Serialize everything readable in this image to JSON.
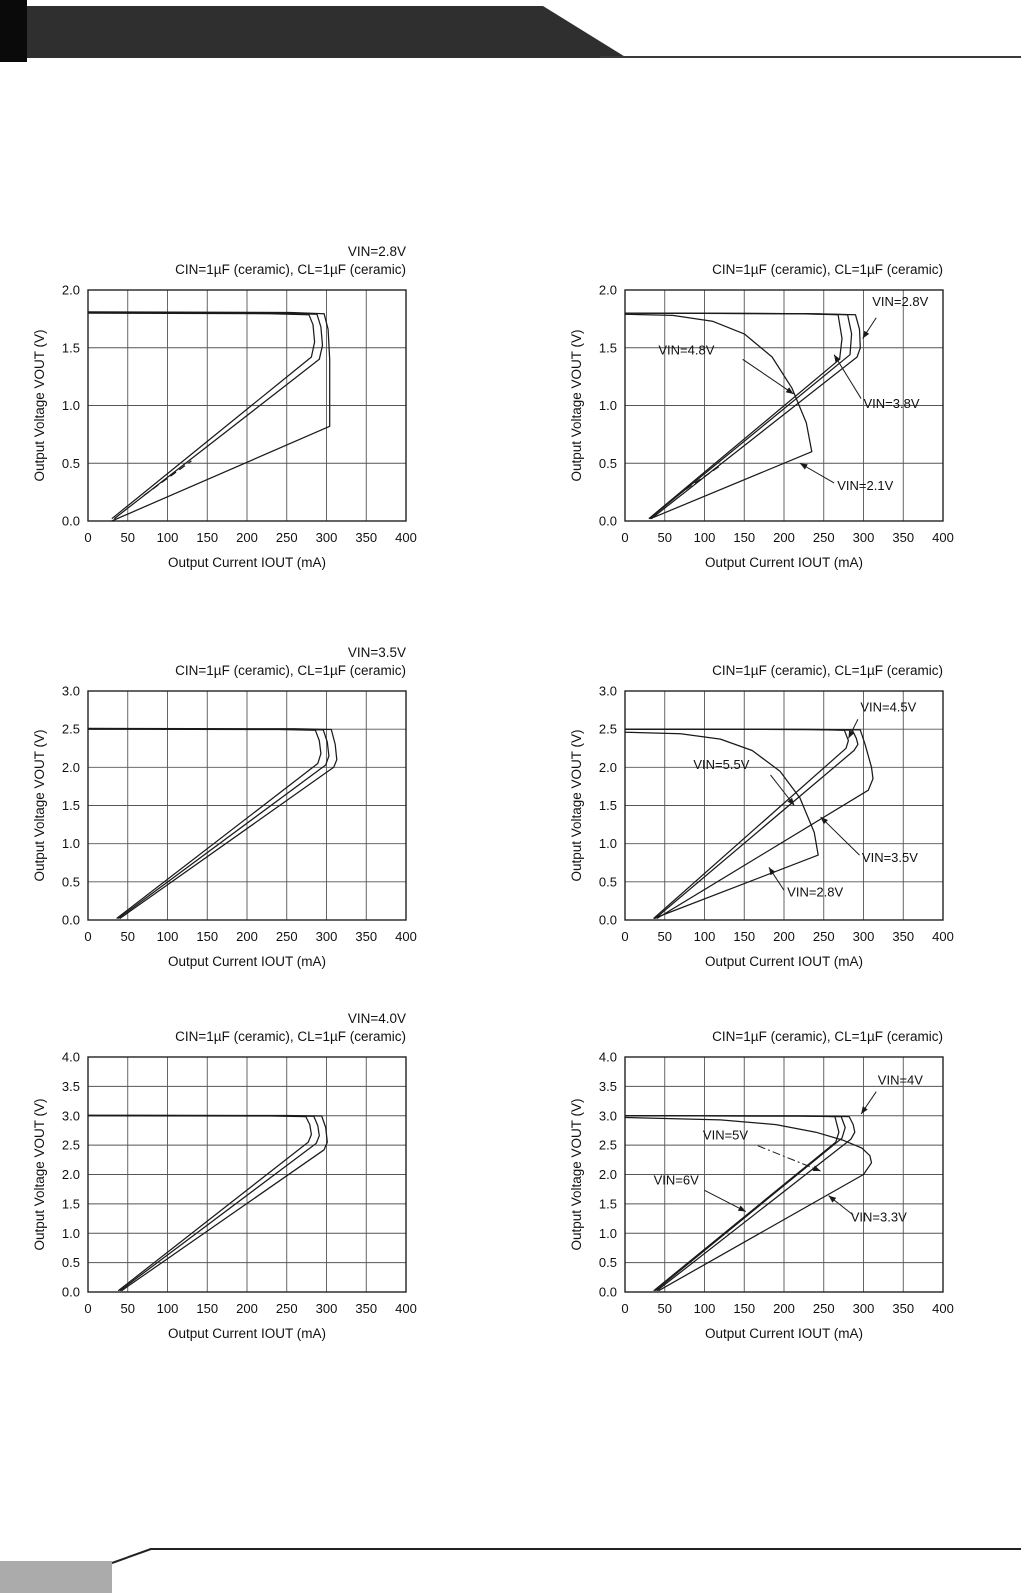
{
  "colors": {
    "curve": "#1a1a1a",
    "grid": "#555555",
    "border": "#222222",
    "band": "#2f2f2f",
    "corner": "#0a0a0a",
    "footer_block": "#ababab"
  },
  "chart_data": [
    {
      "type": "line",
      "vin_title": "VIN=2.8V",
      "title": "CIN=1µF (ceramic), CL=1µF (ceramic)",
      "xlabel": "Output Current IOUT (mA)",
      "ylabel": "Output Voltage VOUT (V)",
      "xlim": [
        0,
        400
      ],
      "ylim": [
        0,
        2.0
      ],
      "xtick_step": 50,
      "ytick_step": 0.5,
      "grid": true,
      "legend": "none",
      "series": [
        {
          "name": "curve-1",
          "points": [
            [
              0,
              1.8
            ],
            [
              230,
              1.795
            ],
            [
              278,
              1.785
            ],
            [
              283,
              1.7
            ],
            [
              285,
              1.55
            ],
            [
              281,
              1.42
            ],
            [
              30,
              0.02
            ]
          ]
        },
        {
          "name": "curve-2",
          "points": [
            [
              0,
              1.805
            ],
            [
              240,
              1.8
            ],
            [
              288,
              1.79
            ],
            [
              293,
              1.68
            ],
            [
              295,
              1.52
            ],
            [
              291,
              1.4
            ],
            [
              33,
              0.02
            ]
          ]
        },
        {
          "name": "curve-3",
          "points": [
            [
              0,
              1.81
            ],
            [
              255,
              1.805
            ],
            [
              297,
              1.795
            ],
            [
              302,
              1.66
            ],
            [
              304,
              1.4
            ],
            [
              304,
              0.82
            ],
            [
              30,
              0.0
            ]
          ]
        },
        {
          "name": "dashed-segment",
          "dashed": true,
          "points": [
            [
              70,
              0.22
            ],
            [
              130,
              0.52
            ]
          ]
        }
      ],
      "annotations": []
    },
    {
      "type": "line",
      "title": "CIN=1µF (ceramic), CL=1µF (ceramic)",
      "xlabel": "Output Current IOUT (mA)",
      "ylabel": "Output Voltage VOUT (V)",
      "xlim": [
        0,
        400
      ],
      "ylim": [
        0,
        2.0
      ],
      "xtick_step": 50,
      "ytick_step": 0.5,
      "grid": true,
      "legend": "inline-annotations",
      "series": [
        {
          "name": "VIN=2.8V",
          "points": [
            [
              0,
              1.8
            ],
            [
              240,
              1.795
            ],
            [
              290,
              1.785
            ],
            [
              295,
              1.66
            ],
            [
              296,
              1.5
            ],
            [
              292,
              1.42
            ],
            [
              33,
              0.02
            ]
          ]
        },
        {
          "name": "VIN=3.8V",
          "points": [
            [
              0,
              1.8
            ],
            [
              230,
              1.795
            ],
            [
              280,
              1.785
            ],
            [
              285,
              1.62
            ],
            [
              283,
              1.44
            ],
            [
              31,
              0.02
            ]
          ]
        },
        {
          "name": "VIN=4.8V",
          "points": [
            [
              0,
              1.8
            ],
            [
              220,
              1.795
            ],
            [
              268,
              1.785
            ],
            [
              273,
              1.58
            ],
            [
              270,
              1.4
            ],
            [
              30,
              0.02
            ]
          ]
        },
        {
          "name": "VIN=2.1V",
          "points": [
            [
              0,
              1.79
            ],
            [
              60,
              1.78
            ],
            [
              110,
              1.73
            ],
            [
              150,
              1.62
            ],
            [
              185,
              1.42
            ],
            [
              210,
              1.15
            ],
            [
              228,
              0.85
            ],
            [
              235,
              0.6
            ],
            [
              32,
              0.02
            ]
          ]
        },
        {
          "name": "dashed-segment",
          "dashed": true,
          "points": [
            [
              65,
              0.22
            ],
            [
              120,
              0.48
            ]
          ]
        }
      ],
      "annotations": [
        {
          "text": "VIN=2.8V",
          "tx": 311,
          "ty": 1.86,
          "sx": 316,
          "sy": 1.76,
          "ax": 299,
          "ay": 1.58
        },
        {
          "text": "VIN=4.8V",
          "tx": 42,
          "ty": 1.44,
          "sx": 148,
          "sy": 1.4,
          "ax": 212,
          "ay": 1.1
        },
        {
          "text": "VIN=3.8V",
          "tx": 300,
          "ty": 0.98,
          "sx": 297,
          "sy": 1.06,
          "ax": 263,
          "ay": 1.44
        },
        {
          "text": "VIN=2.1V",
          "tx": 267,
          "ty": 0.27,
          "sx": 263,
          "sy": 0.33,
          "ax": 220,
          "ay": 0.5
        }
      ]
    },
    {
      "type": "line",
      "vin_title": "VIN=3.5V",
      "title": "CIN=1µF (ceramic), CL=1µF (ceramic)",
      "xlabel": "Output Current IOUT (mA)",
      "ylabel": "Output Voltage VOUT (V)",
      "xlim": [
        0,
        400
      ],
      "ylim": [
        0,
        3.0
      ],
      "xtick_step": 50,
      "ytick_step": 0.5,
      "grid": true,
      "legend": "none",
      "series": [
        {
          "name": "curve-1",
          "points": [
            [
              0,
              2.5
            ],
            [
              240,
              2.495
            ],
            [
              286,
              2.485
            ],
            [
              291,
              2.35
            ],
            [
              293,
              2.18
            ],
            [
              289,
              2.05
            ],
            [
              36,
              0.02
            ]
          ]
        },
        {
          "name": "curve-2",
          "points": [
            [
              0,
              2.505
            ],
            [
              250,
              2.5
            ],
            [
              296,
              2.49
            ],
            [
              301,
              2.33
            ],
            [
              303,
              2.15
            ],
            [
              299,
              2.03
            ],
            [
              38,
              0.02
            ]
          ]
        },
        {
          "name": "curve-3",
          "points": [
            [
              0,
              2.51
            ],
            [
              260,
              2.505
            ],
            [
              306,
              2.495
            ],
            [
              311,
              2.3
            ],
            [
              313,
              2.1
            ],
            [
              309,
              2.0
            ],
            [
              40,
              0.02
            ]
          ]
        }
      ],
      "annotations": []
    },
    {
      "type": "line",
      "title": "CIN=1µF (ceramic), CL=1µF (ceramic)",
      "xlabel": "Output Current IOUT (mA)",
      "ylabel": "Output Voltage VOUT (V)",
      "xlim": [
        0,
        400
      ],
      "ylim": [
        0,
        3.0
      ],
      "xtick_step": 50,
      "ytick_step": 0.5,
      "grid": true,
      "legend": "inline-annotations",
      "series": [
        {
          "name": "VIN=4.5V",
          "points": [
            [
              0,
              2.5
            ],
            [
              240,
              2.495
            ],
            [
              286,
              2.485
            ],
            [
              291,
              2.38
            ],
            [
              293,
              2.3
            ],
            [
              288,
              2.22
            ],
            [
              38,
              0.02
            ]
          ]
        },
        {
          "name": "VIN=5.5V",
          "points": [
            [
              0,
              2.5
            ],
            [
              230,
              2.495
            ],
            [
              276,
              2.485
            ],
            [
              281,
              2.35
            ],
            [
              278,
              2.25
            ],
            [
              36,
              0.02
            ]
          ]
        },
        {
          "name": "VIN=3.5V",
          "points": [
            [
              0,
              2.5
            ],
            [
              250,
              2.495
            ],
            [
              296,
              2.49
            ],
            [
              302,
              2.3
            ],
            [
              310,
              2.0
            ],
            [
              312,
              1.85
            ],
            [
              306,
              1.7
            ],
            [
              40,
              0.02
            ]
          ]
        },
        {
          "name": "VIN=2.8V",
          "points": [
            [
              0,
              2.46
            ],
            [
              70,
              2.44
            ],
            [
              120,
              2.37
            ],
            [
              160,
              2.22
            ],
            [
              195,
              1.95
            ],
            [
              220,
              1.6
            ],
            [
              238,
              1.15
            ],
            [
              243,
              0.85
            ],
            [
              36,
              0.02
            ]
          ]
        }
      ],
      "annotations": [
        {
          "text": "VIN=4.5V",
          "tx": 296,
          "ty": 2.73,
          "sx": 293,
          "sy": 2.63,
          "ax": 281,
          "ay": 2.38
        },
        {
          "text": "VIN=5.5V",
          "tx": 86,
          "ty": 1.98,
          "sx": 183,
          "sy": 1.9,
          "ax": 213,
          "ay": 1.5
        },
        {
          "text": "VIN=3.5V",
          "tx": 298,
          "ty": 0.76,
          "sx": 295,
          "sy": 0.85,
          "ax": 246,
          "ay": 1.35
        },
        {
          "text": "VIN=2.8V",
          "tx": 204,
          "ty": 0.31,
          "sx": 200,
          "sy": 0.39,
          "ax": 181,
          "ay": 0.69
        }
      ]
    },
    {
      "type": "line",
      "vin_title": "VIN=4.0V",
      "title": "CIN=1µF (ceramic), CL=1µF (ceramic)",
      "xlabel": "Output Current IOUT (mA)",
      "ylabel": "Output Voltage VOUT (V)",
      "xlim": [
        0,
        400
      ],
      "ylim": [
        0,
        4.0
      ],
      "xtick_step": 50,
      "ytick_step": 0.5,
      "grid": true,
      "legend": "none",
      "series": [
        {
          "name": "curve-1",
          "points": [
            [
              0,
              3.0
            ],
            [
              230,
              2.995
            ],
            [
              274,
              2.985
            ],
            [
              279,
              2.85
            ],
            [
              281,
              2.68
            ],
            [
              277,
              2.55
            ],
            [
              38,
              0.02
            ]
          ]
        },
        {
          "name": "curve-2",
          "points": [
            [
              0,
              3.005
            ],
            [
              240,
              3.0
            ],
            [
              284,
              2.99
            ],
            [
              289,
              2.83
            ],
            [
              291,
              2.66
            ],
            [
              287,
              2.53
            ],
            [
              40,
              0.02
            ]
          ]
        },
        {
          "name": "curve-3",
          "points": [
            [
              0,
              3.01
            ],
            [
              250,
              3.005
            ],
            [
              294,
              2.995
            ],
            [
              299,
              2.8
            ],
            [
              301,
              2.55
            ],
            [
              297,
              2.42
            ],
            [
              42,
              0.02
            ]
          ]
        }
      ],
      "annotations": []
    },
    {
      "type": "line",
      "title": "CIN=1µF (ceramic), CL=1µF (ceramic)",
      "xlabel": "Output Current IOUT (mA)",
      "ylabel": "Output Voltage VOUT (V)",
      "xlim": [
        0,
        400
      ],
      "ylim": [
        0,
        4.0
      ],
      "xtick_step": 50,
      "ytick_step": 0.5,
      "grid": true,
      "legend": "inline-annotations",
      "series": [
        {
          "name": "VIN=4V",
          "points": [
            [
              0,
              3.0
            ],
            [
              235,
              2.995
            ],
            [
              282,
              2.985
            ],
            [
              287,
              2.85
            ],
            [
              289,
              2.72
            ],
            [
              284,
              2.6
            ],
            [
              40,
              0.02
            ]
          ]
        },
        {
          "name": "VIN=5V",
          "points": [
            [
              0,
              3.0
            ],
            [
              225,
              2.995
            ],
            [
              272,
              2.985
            ],
            [
              277,
              2.8
            ],
            [
              273,
              2.62
            ],
            [
              38,
              0.02
            ]
          ]
        },
        {
          "name": "VIN=6V",
          "points": [
            [
              0,
              3.0
            ],
            [
              215,
              2.995
            ],
            [
              264,
              2.985
            ],
            [
              269,
              2.72
            ],
            [
              265,
              2.55
            ],
            [
              36,
              0.02
            ]
          ]
        },
        {
          "name": "VIN=3.3V",
          "points": [
            [
              0,
              2.97
            ],
            [
              120,
              2.93
            ],
            [
              190,
              2.85
            ],
            [
              240,
              2.72
            ],
            [
              275,
              2.58
            ],
            [
              298,
              2.45
            ],
            [
              308,
              2.32
            ],
            [
              310,
              2.2
            ],
            [
              300,
              2.0
            ],
            [
              42,
              0.02
            ]
          ]
        }
      ],
      "annotations": [
        {
          "text": "VIN=4V",
          "tx": 318,
          "ty": 3.53,
          "sx": 316,
          "sy": 3.41,
          "ax": 297,
          "ay": 3.03
        },
        {
          "text": "VIN=5V",
          "tx": 98,
          "ty": 2.6,
          "sx": 167,
          "sy": 2.49,
          "ax": 246,
          "ay": 2.06,
          "dashed": true
        },
        {
          "text": "VIN=6V",
          "tx": 36,
          "ty": 1.83,
          "sx": 100,
          "sy": 1.73,
          "ax": 152,
          "ay": 1.37
        },
        {
          "text": "VIN=3.3V",
          "tx": 284,
          "ty": 1.2,
          "sx": 287,
          "sy": 1.31,
          "ax": 256,
          "ay": 1.64
        }
      ]
    }
  ]
}
